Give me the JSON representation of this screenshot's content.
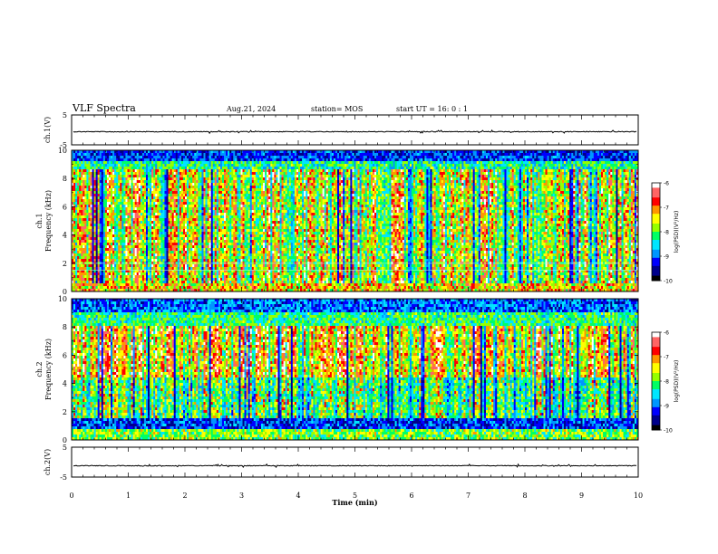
{
  "header": {
    "title": "VLF Spectra",
    "date": "Aug.21, 2024",
    "station": "station= MOS",
    "start_ut": "start  UT =   16: 0  : 1"
  },
  "chart_data": [
    {
      "type": "line",
      "panel": "ch1-waveform",
      "ylabel": "ch.1(V)",
      "ylim": [
        -5,
        5
      ],
      "y_tick_labels": [
        "5",
        "-5"
      ],
      "xlim": [
        0,
        10
      ],
      "trace_level": -0.6,
      "color": "#000000"
    },
    {
      "type": "heatmap",
      "panel": "ch1-spectrogram",
      "ylabel": "ch.1\nFrequency (kHz)",
      "ylim": [
        0,
        10
      ],
      "y_tick_labels": [
        "0",
        "2",
        "4",
        "6",
        "8",
        "10"
      ],
      "xlim": [
        0,
        10
      ],
      "horizontal_lines_khz": [
        1.5,
        2.0
      ],
      "colorbar": {
        "label": "log(PSD)(V²/Hz)",
        "range": [
          -10,
          -6
        ],
        "tick_labels": [
          "-6",
          "-7",
          "-8",
          "-9",
          "-10"
        ]
      }
    },
    {
      "type": "heatmap",
      "panel": "ch2-spectrogram",
      "ylabel": "ch.2\nFrequency (kHz)",
      "ylim": [
        0,
        10
      ],
      "y_tick_labels": [
        "0",
        "2",
        "4",
        "6",
        "8",
        "10"
      ],
      "xlim": [
        0,
        10
      ],
      "colorbar": {
        "label": "log(PSD)(V²/Hz)",
        "range": [
          -10,
          -6
        ],
        "tick_labels": [
          "-6",
          "-7",
          "-8",
          "-9",
          "-10"
        ]
      }
    },
    {
      "type": "line",
      "panel": "ch2-waveform",
      "ylabel": "ch.2(V)",
      "ylim": [
        -5,
        5
      ],
      "y_tick_labels": [
        "5",
        "-5"
      ],
      "xlim": [
        0,
        10
      ],
      "trace_level": -1.2,
      "color": "#000000"
    }
  ],
  "x_axis": {
    "label": "Time  (min)",
    "tick_labels": [
      "0",
      "1",
      "2",
      "3",
      "4",
      "5",
      "6",
      "7",
      "8",
      "9",
      "10"
    ],
    "range": [
      0,
      10
    ]
  },
  "colormap": [
    "#000000",
    "#00008b",
    "#0000ff",
    "#0096ff",
    "#00e6ff",
    "#00ff64",
    "#96ff00",
    "#ffff00",
    "#ff9600",
    "#ff0000",
    "#ff6464",
    "#ffffff"
  ]
}
